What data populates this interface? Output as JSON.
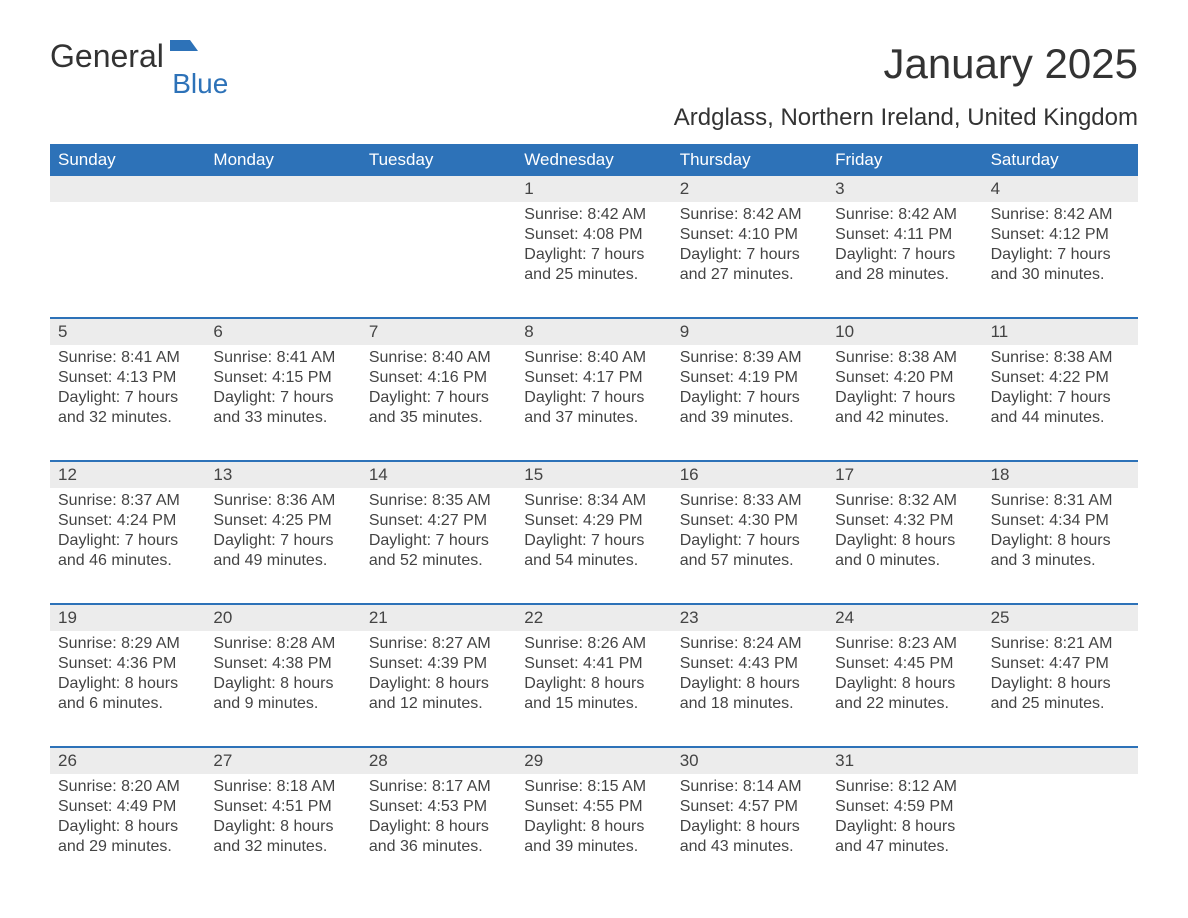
{
  "logo": {
    "word1": "General",
    "word2": "Blue"
  },
  "title": "January 2025",
  "subtitle": "Ardglass, Northern Ireland, United Kingdom",
  "colors": {
    "header_bg": "#2d72b8",
    "header_text": "#ffffff",
    "daynum_bg": "#ececec",
    "text": "#444444",
    "page_bg": "#ffffff",
    "logo_blue": "#2d72b8"
  },
  "fonts": {
    "title_size_pt": 32,
    "subtitle_size_pt": 18,
    "dayhead_size_pt": 13,
    "body_size_pt": 12
  },
  "layout": {
    "columns": 7,
    "rows": 5,
    "leading_blanks": 3,
    "trailing_blanks": 1
  },
  "day_headers": [
    "Sunday",
    "Monday",
    "Tuesday",
    "Wednesday",
    "Thursday",
    "Friday",
    "Saturday"
  ],
  "days": [
    {
      "n": "1",
      "sunrise": "Sunrise: 8:42 AM",
      "sunset": "Sunset: 4:08 PM",
      "day1": "Daylight: 7 hours",
      "day2": "and 25 minutes."
    },
    {
      "n": "2",
      "sunrise": "Sunrise: 8:42 AM",
      "sunset": "Sunset: 4:10 PM",
      "day1": "Daylight: 7 hours",
      "day2": "and 27 minutes."
    },
    {
      "n": "3",
      "sunrise": "Sunrise: 8:42 AM",
      "sunset": "Sunset: 4:11 PM",
      "day1": "Daylight: 7 hours",
      "day2": "and 28 minutes."
    },
    {
      "n": "4",
      "sunrise": "Sunrise: 8:42 AM",
      "sunset": "Sunset: 4:12 PM",
      "day1": "Daylight: 7 hours",
      "day2": "and 30 minutes."
    },
    {
      "n": "5",
      "sunrise": "Sunrise: 8:41 AM",
      "sunset": "Sunset: 4:13 PM",
      "day1": "Daylight: 7 hours",
      "day2": "and 32 minutes."
    },
    {
      "n": "6",
      "sunrise": "Sunrise: 8:41 AM",
      "sunset": "Sunset: 4:15 PM",
      "day1": "Daylight: 7 hours",
      "day2": "and 33 minutes."
    },
    {
      "n": "7",
      "sunrise": "Sunrise: 8:40 AM",
      "sunset": "Sunset: 4:16 PM",
      "day1": "Daylight: 7 hours",
      "day2": "and 35 minutes."
    },
    {
      "n": "8",
      "sunrise": "Sunrise: 8:40 AM",
      "sunset": "Sunset: 4:17 PM",
      "day1": "Daylight: 7 hours",
      "day2": "and 37 minutes."
    },
    {
      "n": "9",
      "sunrise": "Sunrise: 8:39 AM",
      "sunset": "Sunset: 4:19 PM",
      "day1": "Daylight: 7 hours",
      "day2": "and 39 minutes."
    },
    {
      "n": "10",
      "sunrise": "Sunrise: 8:38 AM",
      "sunset": "Sunset: 4:20 PM",
      "day1": "Daylight: 7 hours",
      "day2": "and 42 minutes."
    },
    {
      "n": "11",
      "sunrise": "Sunrise: 8:38 AM",
      "sunset": "Sunset: 4:22 PM",
      "day1": "Daylight: 7 hours",
      "day2": "and 44 minutes."
    },
    {
      "n": "12",
      "sunrise": "Sunrise: 8:37 AM",
      "sunset": "Sunset: 4:24 PM",
      "day1": "Daylight: 7 hours",
      "day2": "and 46 minutes."
    },
    {
      "n": "13",
      "sunrise": "Sunrise: 8:36 AM",
      "sunset": "Sunset: 4:25 PM",
      "day1": "Daylight: 7 hours",
      "day2": "and 49 minutes."
    },
    {
      "n": "14",
      "sunrise": "Sunrise: 8:35 AM",
      "sunset": "Sunset: 4:27 PM",
      "day1": "Daylight: 7 hours",
      "day2": "and 52 minutes."
    },
    {
      "n": "15",
      "sunrise": "Sunrise: 8:34 AM",
      "sunset": "Sunset: 4:29 PM",
      "day1": "Daylight: 7 hours",
      "day2": "and 54 minutes."
    },
    {
      "n": "16",
      "sunrise": "Sunrise: 8:33 AM",
      "sunset": "Sunset: 4:30 PM",
      "day1": "Daylight: 7 hours",
      "day2": "and 57 minutes."
    },
    {
      "n": "17",
      "sunrise": "Sunrise: 8:32 AM",
      "sunset": "Sunset: 4:32 PM",
      "day1": "Daylight: 8 hours",
      "day2": "and 0 minutes."
    },
    {
      "n": "18",
      "sunrise": "Sunrise: 8:31 AM",
      "sunset": "Sunset: 4:34 PM",
      "day1": "Daylight: 8 hours",
      "day2": "and 3 minutes."
    },
    {
      "n": "19",
      "sunrise": "Sunrise: 8:29 AM",
      "sunset": "Sunset: 4:36 PM",
      "day1": "Daylight: 8 hours",
      "day2": "and 6 minutes."
    },
    {
      "n": "20",
      "sunrise": "Sunrise: 8:28 AM",
      "sunset": "Sunset: 4:38 PM",
      "day1": "Daylight: 8 hours",
      "day2": "and 9 minutes."
    },
    {
      "n": "21",
      "sunrise": "Sunrise: 8:27 AM",
      "sunset": "Sunset: 4:39 PM",
      "day1": "Daylight: 8 hours",
      "day2": "and 12 minutes."
    },
    {
      "n": "22",
      "sunrise": "Sunrise: 8:26 AM",
      "sunset": "Sunset: 4:41 PM",
      "day1": "Daylight: 8 hours",
      "day2": "and 15 minutes."
    },
    {
      "n": "23",
      "sunrise": "Sunrise: 8:24 AM",
      "sunset": "Sunset: 4:43 PM",
      "day1": "Daylight: 8 hours",
      "day2": "and 18 minutes."
    },
    {
      "n": "24",
      "sunrise": "Sunrise: 8:23 AM",
      "sunset": "Sunset: 4:45 PM",
      "day1": "Daylight: 8 hours",
      "day2": "and 22 minutes."
    },
    {
      "n": "25",
      "sunrise": "Sunrise: 8:21 AM",
      "sunset": "Sunset: 4:47 PM",
      "day1": "Daylight: 8 hours",
      "day2": "and 25 minutes."
    },
    {
      "n": "26",
      "sunrise": "Sunrise: 8:20 AM",
      "sunset": "Sunset: 4:49 PM",
      "day1": "Daylight: 8 hours",
      "day2": "and 29 minutes."
    },
    {
      "n": "27",
      "sunrise": "Sunrise: 8:18 AM",
      "sunset": "Sunset: 4:51 PM",
      "day1": "Daylight: 8 hours",
      "day2": "and 32 minutes."
    },
    {
      "n": "28",
      "sunrise": "Sunrise: 8:17 AM",
      "sunset": "Sunset: 4:53 PM",
      "day1": "Daylight: 8 hours",
      "day2": "and 36 minutes."
    },
    {
      "n": "29",
      "sunrise": "Sunrise: 8:15 AM",
      "sunset": "Sunset: 4:55 PM",
      "day1": "Daylight: 8 hours",
      "day2": "and 39 minutes."
    },
    {
      "n": "30",
      "sunrise": "Sunrise: 8:14 AM",
      "sunset": "Sunset: 4:57 PM",
      "day1": "Daylight: 8 hours",
      "day2": "and 43 minutes."
    },
    {
      "n": "31",
      "sunrise": "Sunrise: 8:12 AM",
      "sunset": "Sunset: 4:59 PM",
      "day1": "Daylight: 8 hours",
      "day2": "and 47 minutes."
    }
  ]
}
